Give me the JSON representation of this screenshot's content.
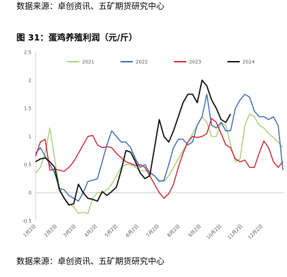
{
  "source_top": "数据来源：卓创资讯、五矿期货研究中心",
  "figure_title": "图 31：蛋鸡养殖利润（元/斤）",
  "source_bottom": "数据来源：卓创资讯、五矿期货研究中心",
  "chart_data": {
    "type": "line",
    "title": "图 31：蛋鸡养殖利润（元/斤）",
    "xlabel": "",
    "ylabel": "",
    "ylim": [
      -0.5,
      2.5
    ],
    "yticks": [
      "-0.5",
      "0",
      "0.5",
      "1",
      "1.5",
      "2",
      "2.5"
    ],
    "x_tick_labels": [
      "1月2日",
      "2月2日",
      "3月2日",
      "4月2日",
      "5月2日",
      "6月2日",
      "7月2日",
      "8月2日",
      "9月2日",
      "10月2日",
      "11月2日",
      "12月2日"
    ],
    "x_range_days": [
      1,
      366
    ],
    "legend_position": "top",
    "grid": false,
    "series": [
      {
        "name": "2021",
        "color": "#a6d17a",
        "x": [
          1,
          8,
          15,
          22,
          29,
          36,
          43,
          50,
          57,
          64,
          71,
          78,
          85,
          92,
          99,
          106,
          113,
          120,
          127,
          134,
          141,
          148,
          155,
          162,
          169,
          176,
          183,
          190,
          197,
          204,
          211,
          218,
          225,
          232,
          239,
          246,
          253,
          260,
          267,
          274,
          281,
          288,
          295,
          302,
          309,
          316,
          323,
          330,
          337,
          344,
          351,
          358,
          365
        ],
        "y": [
          0.35,
          0.45,
          0.7,
          1.15,
          0.6,
          0.1,
          -0.1,
          -0.2,
          -0.25,
          -0.37,
          -0.35,
          -0.37,
          -0.1,
          0.0,
          0.0,
          0.05,
          0.15,
          0.3,
          0.45,
          0.5,
          0.5,
          0.45,
          0.38,
          0.4,
          0.38,
          0.3,
          0.22,
          0.2,
          0.3,
          0.45,
          0.6,
          0.75,
          0.9,
          1.05,
          1.2,
          1.35,
          1.25,
          1.0,
          1.0,
          1.25,
          1.2,
          0.85,
          0.55,
          0.6,
          1.2,
          1.4,
          1.35,
          1.2,
          1.15,
          1.05,
          0.98,
          0.9,
          0.8
        ]
      },
      {
        "name": "2022",
        "color": "#3d6db0",
        "x": [
          1,
          8,
          15,
          22,
          29,
          36,
          43,
          50,
          57,
          64,
          71,
          78,
          85,
          92,
          99,
          106,
          113,
          120,
          127,
          134,
          141,
          148,
          155,
          162,
          169,
          176,
          183,
          190,
          197,
          204,
          211,
          218,
          225,
          232,
          239,
          246,
          253,
          260,
          267,
          274,
          281,
          288,
          295,
          302,
          309,
          316,
          323,
          330,
          337,
          344,
          351,
          358,
          365
        ],
        "y": [
          0.7,
          0.8,
          0.65,
          0.5,
          0.35,
          0.08,
          0.05,
          -0.05,
          -0.1,
          -0.15,
          0.0,
          0.2,
          0.22,
          0.25,
          0.55,
          0.85,
          1.1,
          1.0,
          0.9,
          0.9,
          0.8,
          0.6,
          0.45,
          0.5,
          0.35,
          0.3,
          0.2,
          0.22,
          0.5,
          0.8,
          0.95,
          0.95,
          0.85,
          0.9,
          1.2,
          1.35,
          1.75,
          1.2,
          1.15,
          1.25,
          1.1,
          1.1,
          1.5,
          1.65,
          1.75,
          1.7,
          1.45,
          1.35,
          1.35,
          1.3,
          1.35,
          1.2,
          0.4
        ]
      },
      {
        "name": "2023",
        "color": "#c8283a",
        "x": [
          1,
          8,
          15,
          22,
          29,
          36,
          43,
          50,
          57,
          64,
          71,
          78,
          85,
          92,
          99,
          106,
          113,
          120,
          127,
          134,
          141,
          148,
          155,
          162,
          169,
          176,
          183,
          190,
          197,
          204,
          211,
          218,
          225,
          232,
          239,
          246,
          253,
          260,
          267,
          274,
          281,
          288,
          295,
          302,
          309,
          316,
          323,
          330,
          337,
          344,
          351,
          358,
          365
        ],
        "y": [
          0.65,
          0.9,
          0.95,
          0.4,
          0.42,
          0.4,
          0.38,
          0.45,
          0.55,
          0.7,
          0.85,
          1.0,
          1.02,
          0.85,
          0.8,
          0.82,
          0.8,
          0.7,
          0.62,
          0.55,
          0.52,
          0.48,
          0.5,
          0.45,
          0.3,
          0.15,
          0.0,
          -0.1,
          -0.02,
          0.15,
          0.45,
          0.7,
          0.9,
          1.0,
          0.98,
          1.0,
          1.05,
          1.32,
          1.25,
          1.05,
          0.85,
          0.8,
          0.6,
          0.55,
          0.58,
          0.45,
          0.45,
          0.7,
          0.92,
          0.8,
          0.55,
          0.45,
          0.55
        ]
      },
      {
        "name": "2024",
        "color": "#111111",
        "x": [
          1,
          8,
          15,
          22,
          29,
          36,
          43,
          50,
          57,
          64,
          71,
          78,
          85,
          92,
          99,
          106,
          113,
          120,
          127,
          134,
          141,
          148,
          155,
          162,
          169,
          176,
          183,
          190,
          197,
          204,
          211,
          218,
          225,
          232,
          239,
          246,
          253,
          260,
          267,
          274,
          281,
          288
        ],
        "y": [
          0.55,
          0.6,
          0.62,
          0.55,
          0.45,
          0.05,
          -0.1,
          -0.22,
          -0.2,
          0.15,
          0.0,
          -0.1,
          -0.12,
          -0.15,
          0.02,
          -0.05,
          0.02,
          0.1,
          0.4,
          0.75,
          0.72,
          0.55,
          0.35,
          0.25,
          0.3,
          0.8,
          1.3,
          1.0,
          0.9,
          1.1,
          1.35,
          1.6,
          1.75,
          1.75,
          1.6,
          2.0,
          1.9,
          1.65,
          1.5,
          1.3,
          1.25,
          1.4
        ]
      }
    ]
  }
}
